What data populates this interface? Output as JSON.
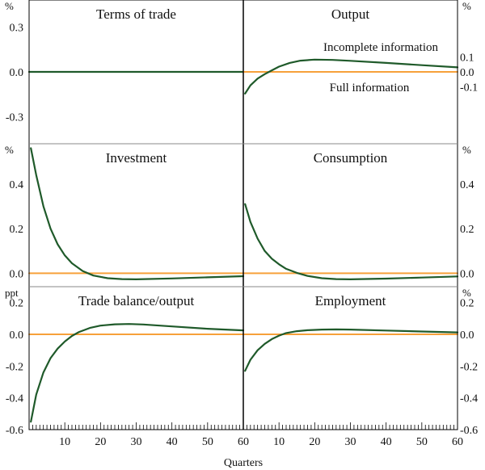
{
  "colors": {
    "incomplete": "#1f5a2a",
    "full": "#f7a13a",
    "frame": "#000000"
  },
  "chart_data": {
    "type": "line",
    "x_axis": {
      "label": "Quarters",
      "range": [
        0,
        60
      ],
      "ticks_left": [
        "10",
        "20",
        "30",
        "40",
        "50",
        "60"
      ],
      "ticks_right": [
        "10",
        "20",
        "30",
        "40",
        "50",
        "60"
      ],
      "tick_values": [
        10,
        20,
        30,
        40,
        50,
        60
      ]
    },
    "legend": [
      {
        "key": "incomplete",
        "label": "Incomplete information",
        "panel": "output"
      },
      {
        "key": "full",
        "label": "Full information",
        "panel": "output"
      }
    ],
    "rows": [
      {
        "left_unit": "%",
        "right_unit": "%",
        "ylim": [
          -0.48,
          0.48
        ],
        "left_tick_values": [
          -0.3,
          0.0,
          0.3
        ],
        "left_ticks": [
          "-0.3",
          "0.0",
          "0.3"
        ],
        "right_tick_values": [
          -0.1,
          0.0,
          0.1
        ],
        "right_ticks": [
          "-0.1",
          "0.0",
          "0.1"
        ],
        "panels": [
          {
            "key": "terms",
            "title": "Terms of trade",
            "scale": "left",
            "series": [
              {
                "key": "full",
                "x": [
                  0,
                  60
                ],
                "y": [
                  0,
                  0
                ]
              },
              {
                "key": "incomplete",
                "x": [
                  0,
                  60
                ],
                "y": [
                  0,
                  0
                ]
              }
            ]
          },
          {
            "key": "output",
            "title": "Output",
            "scale": "right",
            "series": [
              {
                "key": "full",
                "x": [
                  0,
                  60
                ],
                "y": [
                  0,
                  0
                ]
              },
              {
                "key": "incomplete",
                "x": [
                  0.5,
                  2,
                  4,
                  6,
                  8,
                  10,
                  13,
                  16,
                  20,
                  25,
                  30,
                  40,
                  50,
                  60
                ],
                "y": [
                  -0.145,
                  -0.09,
                  -0.045,
                  -0.015,
                  0.01,
                  0.035,
                  0.06,
                  0.075,
                  0.082,
                  0.08,
                  0.074,
                  0.06,
                  0.045,
                  0.03
                ]
              }
            ]
          }
        ]
      },
      {
        "left_unit": "%",
        "right_unit": "%",
        "ylim": [
          -0.06,
          0.58
        ],
        "left_tick_values": [
          0.0,
          0.2,
          0.4
        ],
        "left_ticks": [
          "0.0",
          "0.2",
          "0.4"
        ],
        "right_tick_values": [
          0.0,
          0.2,
          0.4
        ],
        "right_ticks": [
          "0.0",
          "0.2",
          "0.4"
        ],
        "panels": [
          {
            "key": "investment",
            "title": "Investment",
            "scale": "left",
            "series": [
              {
                "key": "full",
                "x": [
                  0,
                  60
                ],
                "y": [
                  0,
                  0
                ]
              },
              {
                "key": "incomplete",
                "x": [
                  0.5,
                  2,
                  4,
                  6,
                  8,
                  10,
                  12,
                  15,
                  18,
                  22,
                  26,
                  30,
                  40,
                  50,
                  60
                ],
                "y": [
                  0.56,
                  0.44,
                  0.3,
                  0.2,
                  0.13,
                  0.08,
                  0.045,
                  0.01,
                  -0.01,
                  -0.022,
                  -0.026,
                  -0.027,
                  -0.023,
                  -0.018,
                  -0.013
                ]
              }
            ]
          },
          {
            "key": "consumption",
            "title": "Consumption",
            "scale": "right",
            "series": [
              {
                "key": "full",
                "x": [
                  0,
                  60
                ],
                "y": [
                  0,
                  0
                ]
              },
              {
                "key": "incomplete",
                "x": [
                  0.5,
                  2,
                  4,
                  6,
                  8,
                  10,
                  12,
                  15,
                  18,
                  22,
                  26,
                  30,
                  40,
                  50,
                  60
                ],
                "y": [
                  0.31,
                  0.23,
                  0.155,
                  0.1,
                  0.065,
                  0.04,
                  0.02,
                  0.002,
                  -0.012,
                  -0.022,
                  -0.026,
                  -0.027,
                  -0.024,
                  -0.019,
                  -0.014
                ]
              }
            ]
          }
        ]
      },
      {
        "left_unit": "ppt",
        "right_unit": "%",
        "ylim": [
          -0.6,
          0.3
        ],
        "left_tick_values": [
          -0.6,
          -0.4,
          -0.2,
          0.0,
          0.2
        ],
        "left_ticks": [
          "-0.6",
          "-0.4",
          "-0.2",
          "0.0",
          "0.2"
        ],
        "right_tick_values": [
          -0.6,
          -0.4,
          -0.2,
          0.0,
          0.2
        ],
        "right_ticks": [
          "-0.6",
          "-0.4",
          "-0.2",
          "0.0",
          "0.2"
        ],
        "panels": [
          {
            "key": "trade",
            "title": "Trade balance/output",
            "scale": "left",
            "series": [
              {
                "key": "full",
                "x": [
                  0,
                  60
                ],
                "y": [
                  0,
                  0
                ]
              },
              {
                "key": "incomplete",
                "x": [
                  0.5,
                  2,
                  4,
                  6,
                  8,
                  10,
                  12,
                  14,
                  17,
                  20,
                  24,
                  28,
                  32,
                  40,
                  50,
                  60
                ],
                "y": [
                  -0.55,
                  -0.38,
                  -0.24,
                  -0.15,
                  -0.09,
                  -0.045,
                  -0.01,
                  0.015,
                  0.04,
                  0.055,
                  0.063,
                  0.065,
                  0.062,
                  0.05,
                  0.035,
                  0.025
                ]
              }
            ]
          },
          {
            "key": "employment",
            "title": "Employment",
            "scale": "right",
            "series": [
              {
                "key": "full",
                "x": [
                  0,
                  60
                ],
                "y": [
                  0,
                  0
                ]
              },
              {
                "key": "incomplete",
                "x": [
                  0.5,
                  2,
                  4,
                  6,
                  8,
                  10,
                  12,
                  15,
                  18,
                  22,
                  26,
                  30,
                  40,
                  50,
                  60
                ],
                "y": [
                  -0.23,
                  -0.16,
                  -0.1,
                  -0.06,
                  -0.03,
                  -0.008,
                  0.008,
                  0.02,
                  0.026,
                  0.03,
                  0.031,
                  0.03,
                  0.024,
                  0.018,
                  0.012
                ]
              }
            ]
          }
        ]
      }
    ]
  }
}
